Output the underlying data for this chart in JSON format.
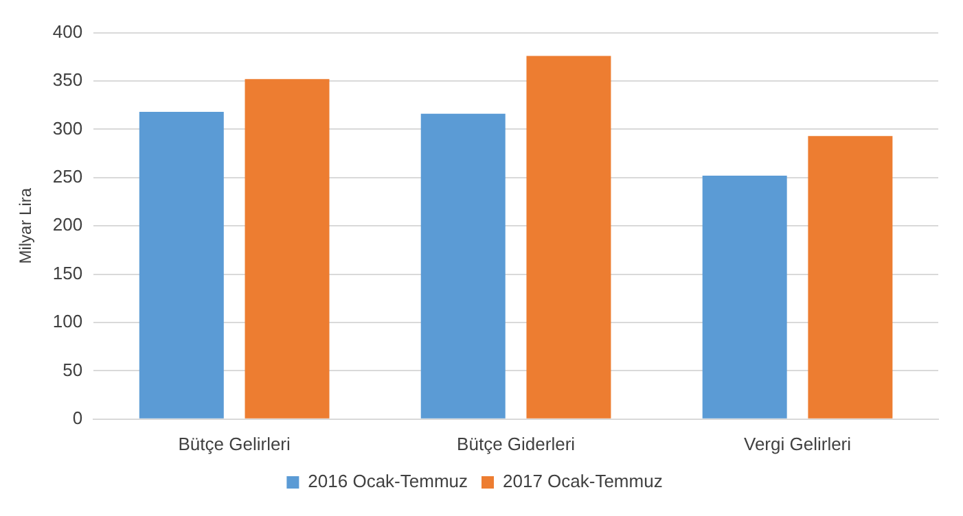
{
  "chart_data": {
    "type": "bar",
    "ylabel": "Milyar Lira",
    "categories": [
      "Bütçe Gelirleri",
      "Bütçe Giderleri",
      "Vergi Gelirleri"
    ],
    "series": [
      {
        "name": "2016 Ocak-Temmuz",
        "color": "#5b9bd5",
        "values": [
          318,
          316,
          252
        ]
      },
      {
        "name": "2017 Ocak-Temmuz",
        "color": "#ed7d31",
        "values": [
          352,
          376,
          293
        ]
      }
    ],
    "ylim": [
      0,
      400
    ],
    "yticks": [
      0,
      50,
      100,
      150,
      200,
      250,
      300,
      350,
      400
    ],
    "grid": "y",
    "legend": "bottom"
  }
}
